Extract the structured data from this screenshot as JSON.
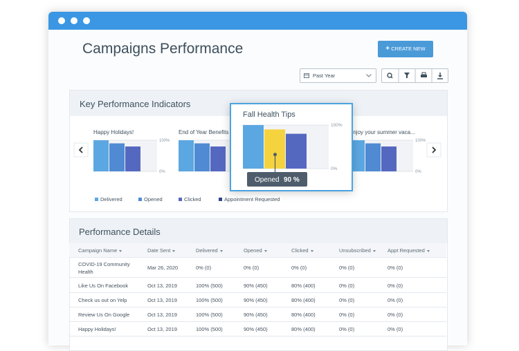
{
  "header": {
    "title": "Campaigns Performance",
    "create_button": "CREATE NEW",
    "date_filter": "Past Year"
  },
  "kpi": {
    "title": "Key Performance Indicators",
    "legend": [
      {
        "name": "Delivered",
        "color": "#5ba7e2"
      },
      {
        "name": "Opened",
        "color": "#4f8ad3"
      },
      {
        "name": "Clicked",
        "color": "#5568c0"
      },
      {
        "name": "Appointment Requested",
        "color": "#34438f"
      }
    ],
    "charts": [
      {
        "type": "bar",
        "title": "Happy Holidays!",
        "values": [
          100,
          90,
          80,
          0
        ],
        "ylim": [
          0,
          100
        ],
        "yticks": [
          {
            "value": 100,
            "label": "100%"
          },
          {
            "value": 0,
            "label": "0%"
          }
        ]
      },
      {
        "type": "bar",
        "title": "End of Year Benefits",
        "values": [
          100,
          90,
          80,
          0
        ],
        "ylim": [
          0,
          100
        ],
        "yticks": [
          {
            "value": 100,
            "label": "100%"
          },
          {
            "value": 0,
            "label": "0%"
          }
        ]
      },
      {
        "type": "bar",
        "title": "Enjoy your summer vaca...",
        "values": [
          100,
          90,
          80,
          0
        ],
        "ylim": [
          0,
          100
        ],
        "yticks": [
          {
            "value": 100,
            "label": "100%"
          },
          {
            "value": 0,
            "label": "0%"
          }
        ]
      }
    ],
    "focused": {
      "type": "bar",
      "title": "Fall Health Tips",
      "values": [
        100,
        90,
        80,
        0
      ],
      "ylim": [
        0,
        100
      ],
      "yticks": [
        {
          "value": 100,
          "label": "100%"
        },
        {
          "value": 0,
          "label": "0%"
        }
      ],
      "tooltip": {
        "series": "Opened",
        "value_label": "90 %",
        "color": "#f5d33f"
      }
    }
  },
  "details": {
    "title": "Performance Details",
    "table": {
      "columns": [
        "Campaign Name",
        "Date Sent",
        "Delivered",
        "Opened",
        "Clicked",
        "Unsubscribed",
        "Appt Requested"
      ],
      "rows": [
        [
          "COVID-19 Community Health",
          "Mar 26, 2020",
          "0% (0)",
          "0% (0)",
          "0% (0)",
          "0% (0)",
          "0% (0)"
        ],
        [
          "Like Us On Facebook",
          "Oct 13, 2019",
          "100% (500)",
          "90% (450)",
          "80% (400)",
          "0% (0)",
          "0% (0)"
        ],
        [
          "Check us out on Yelp",
          "Oct 13, 2019",
          "100% (500)",
          "90% (450)",
          "80% (400)",
          "0% (0)",
          "0% (0)"
        ],
        [
          "Review Us On Google",
          "Oct 13, 2019",
          "100% (500)",
          "90% (450)",
          "80% (400)",
          "0% (0)",
          "0% (0)"
        ],
        [
          "Happy Holidays!",
          "Oct 13, 2019",
          "100% (500)",
          "90% (450)",
          "80% (400)",
          "0% (0)",
          "0% (0)"
        ]
      ]
    }
  }
}
